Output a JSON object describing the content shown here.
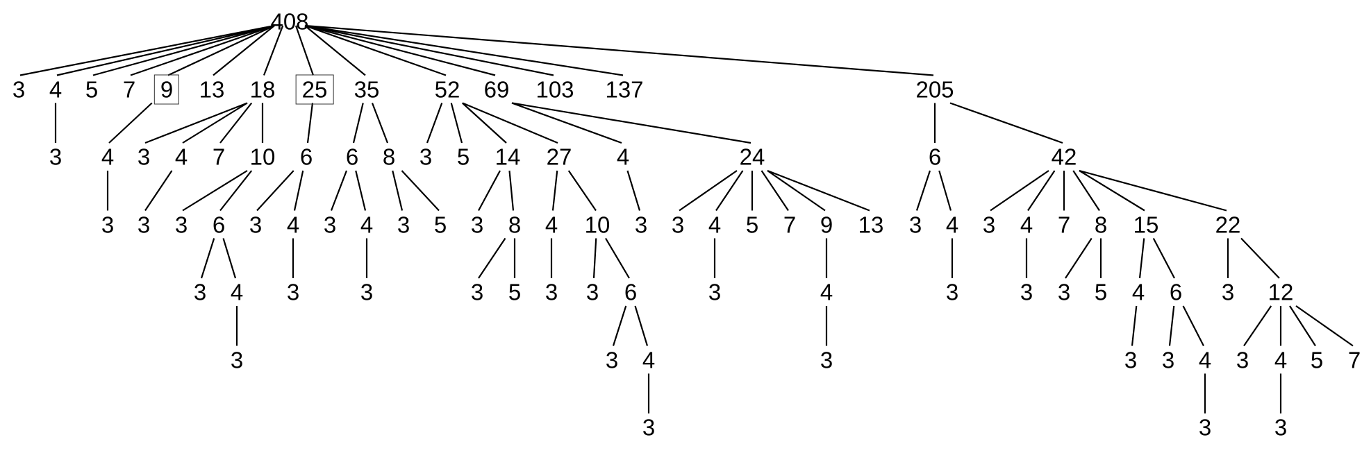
{
  "diagram": {
    "type": "tree",
    "line_color": "#000000",
    "text_color": "#000000",
    "root": {
      "label": "408",
      "children": [
        {
          "label": "3"
        },
        {
          "label": "4",
          "children": [
            {
              "label": "3"
            }
          ]
        },
        {
          "label": "5"
        },
        {
          "label": "7"
        },
        {
          "label": "9",
          "boxed": true,
          "children": [
            {
              "label": "4",
              "children": [
                {
                  "label": "3"
                }
              ]
            }
          ]
        },
        {
          "label": "13"
        },
        {
          "label": "18",
          "children": [
            {
              "label": "3"
            },
            {
              "label": "4",
              "children": [
                {
                  "label": "3"
                }
              ]
            },
            {
              "label": "7"
            },
            {
              "label": "10",
              "children": [
                {
                  "label": "3"
                },
                {
                  "label": "6",
                  "children": [
                    {
                      "label": "3"
                    },
                    {
                      "label": "4",
                      "children": [
                        {
                          "label": "3"
                        }
                      ]
                    }
                  ]
                }
              ]
            }
          ]
        },
        {
          "label": "25",
          "boxed": true,
          "children": [
            {
              "label": "6",
              "children": [
                {
                  "label": "3"
                },
                {
                  "label": "4",
                  "children": [
                    {
                      "label": "3"
                    }
                  ]
                }
              ]
            }
          ]
        },
        {
          "label": "35",
          "children": [
            {
              "label": "6",
              "children": [
                {
                  "label": "3"
                },
                {
                  "label": "4",
                  "children": [
                    {
                      "label": "3"
                    }
                  ]
                }
              ]
            },
            {
              "label": "8",
              "children": [
                {
                  "label": "3"
                },
                {
                  "label": "5"
                }
              ]
            }
          ]
        },
        {
          "label": "52",
          "children": [
            {
              "label": "3"
            },
            {
              "label": "5"
            },
            {
              "label": "14",
              "children": [
                {
                  "label": "3"
                },
                {
                  "label": "8",
                  "children": [
                    {
                      "label": "3"
                    },
                    {
                      "label": "5"
                    }
                  ]
                }
              ]
            },
            {
              "label": "27",
              "children": [
                {
                  "label": "4",
                  "children": [
                    {
                      "label": "3"
                    }
                  ]
                },
                {
                  "label": "10",
                  "children": [
                    {
                      "label": "3"
                    },
                    {
                      "label": "6",
                      "children": [
                        {
                          "label": "3"
                        },
                        {
                          "label": "4",
                          "children": [
                            {
                              "label": "3"
                            }
                          ]
                        }
                      ]
                    }
                  ]
                }
              ]
            }
          ]
        },
        {
          "label": "69",
          "children": [
            {
              "label": "4",
              "children": [
                {
                  "label": "3"
                }
              ]
            },
            {
              "label": "24",
              "children": [
                {
                  "label": "3"
                },
                {
                  "label": "4",
                  "children": [
                    {
                      "label": "3"
                    }
                  ]
                },
                {
                  "label": "5"
                },
                {
                  "label": "7"
                },
                {
                  "label": "9",
                  "children": [
                    {
                      "label": "4",
                      "children": [
                        {
                          "label": "3"
                        }
                      ]
                    }
                  ]
                },
                {
                  "label": "13"
                }
              ]
            }
          ]
        },
        {
          "label": "103"
        },
        {
          "label": "137"
        },
        {
          "label": "205",
          "children": [
            {
              "label": "6",
              "children": [
                {
                  "label": "3"
                },
                {
                  "label": "4",
                  "children": [
                    {
                      "label": "3"
                    }
                  ]
                }
              ]
            },
            {
              "label": "42",
              "children": [
                {
                  "label": "3"
                },
                {
                  "label": "4",
                  "children": [
                    {
                      "label": "3"
                    }
                  ]
                },
                {
                  "label": "7"
                },
                {
                  "label": "8",
                  "children": [
                    {
                      "label": "3"
                    },
                    {
                      "label": "5"
                    }
                  ]
                },
                {
                  "label": "15",
                  "children": [
                    {
                      "label": "4",
                      "children": [
                        {
                          "label": "3"
                        }
                      ]
                    },
                    {
                      "label": "6",
                      "children": [
                        {
                          "label": "3"
                        },
                        {
                          "label": "4",
                          "children": [
                            {
                              "label": "3"
                            }
                          ]
                        }
                      ]
                    }
                  ]
                },
                {
                  "label": "22",
                  "children": [
                    {
                      "label": "3"
                    },
                    {
                      "label": "12",
                      "children": [
                        {
                          "label": "3"
                        },
                        {
                          "label": "4",
                          "children": [
                            {
                              "label": "3"
                            }
                          ]
                        },
                        {
                          "label": "5"
                        },
                        {
                          "label": "7"
                        }
                      ]
                    }
                  ]
                }
              ]
            }
          ]
        }
      ]
    }
  }
}
